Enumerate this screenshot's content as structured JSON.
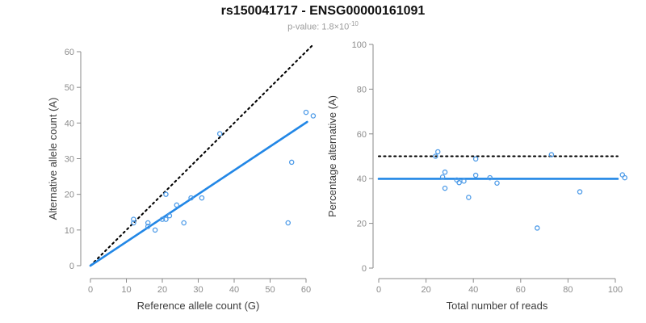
{
  "title": "rs150041717 - ENSG00000161091",
  "subtitle": {
    "text": "p-value: 1.8×10",
    "exponent": "-10"
  },
  "colors": {
    "accent": "#2287e6",
    "point": "#4d9be8",
    "dotted_line": "#000000",
    "axis": "#8a8a8a",
    "tick_label": "#8c8c8c",
    "axis_title": "#3c3c3c",
    "title": "#111111",
    "subtitle": "#9b9b9b"
  },
  "chart_data": [
    {
      "type": "scatter",
      "panel": "left",
      "xlabel": "Reference allele count (G)",
      "ylabel": "Alternative allele count (A)",
      "xlim": [
        0,
        62
      ],
      "ylim": [
        0,
        62
      ],
      "xticks": [
        0,
        10,
        20,
        30,
        40,
        50,
        60
      ],
      "yticks": [
        0,
        10,
        20,
        30,
        40,
        50,
        60
      ],
      "grid": false,
      "legend": "none",
      "points": [
        [
          12,
          12
        ],
        [
          12,
          13
        ],
        [
          16,
          11
        ],
        [
          16,
          12
        ],
        [
          18,
          10
        ],
        [
          20,
          13
        ],
        [
          21,
          13
        ],
        [
          21,
          20
        ],
        [
          22,
          14
        ],
        [
          24,
          17
        ],
        [
          26,
          12
        ],
        [
          28,
          19
        ],
        [
          31,
          19
        ],
        [
          36,
          37
        ],
        [
          55,
          12
        ],
        [
          56,
          29
        ],
        [
          60,
          43
        ],
        [
          62,
          42
        ]
      ],
      "lines": [
        {
          "name": "identity-line",
          "style": "dotted",
          "from": [
            0,
            0
          ],
          "to": [
            62,
            62
          ]
        },
        {
          "name": "regression-line",
          "style": "solid",
          "from": [
            0,
            0
          ],
          "to": [
            60.3,
            40.3
          ]
        }
      ]
    },
    {
      "type": "scatter",
      "panel": "right",
      "xlabel": "Total number of reads",
      "ylabel": "Percentage alternative (A)",
      "xlim": [
        0,
        104
      ],
      "ylim": [
        0,
        100
      ],
      "xticks": [
        0,
        20,
        40,
        60,
        80,
        100
      ],
      "yticks": [
        0,
        20,
        40,
        60,
        80,
        100
      ],
      "grid": false,
      "legend": "none",
      "points": [
        [
          24,
          50.0
        ],
        [
          25,
          52.0
        ],
        [
          27,
          40.7
        ],
        [
          28,
          42.9
        ],
        [
          28,
          35.7
        ],
        [
          33,
          39.4
        ],
        [
          34,
          38.2
        ],
        [
          36,
          38.9
        ],
        [
          38,
          31.6
        ],
        [
          41,
          41.5
        ],
        [
          41,
          48.8
        ],
        [
          47,
          40.4
        ],
        [
          50,
          38.0
        ],
        [
          67,
          17.9
        ],
        [
          73,
          50.7
        ],
        [
          85,
          34.1
        ],
        [
          103,
          41.7
        ],
        [
          104,
          40.4
        ]
      ],
      "lines": [
        {
          "name": "expected-percentage-line",
          "style": "dotted",
          "from": [
            0,
            50
          ],
          "to": [
            101,
            50
          ]
        },
        {
          "name": "fitted-percentage-line",
          "style": "solid",
          "from": [
            0,
            39.9
          ],
          "to": [
            101,
            39.9
          ]
        }
      ]
    }
  ]
}
